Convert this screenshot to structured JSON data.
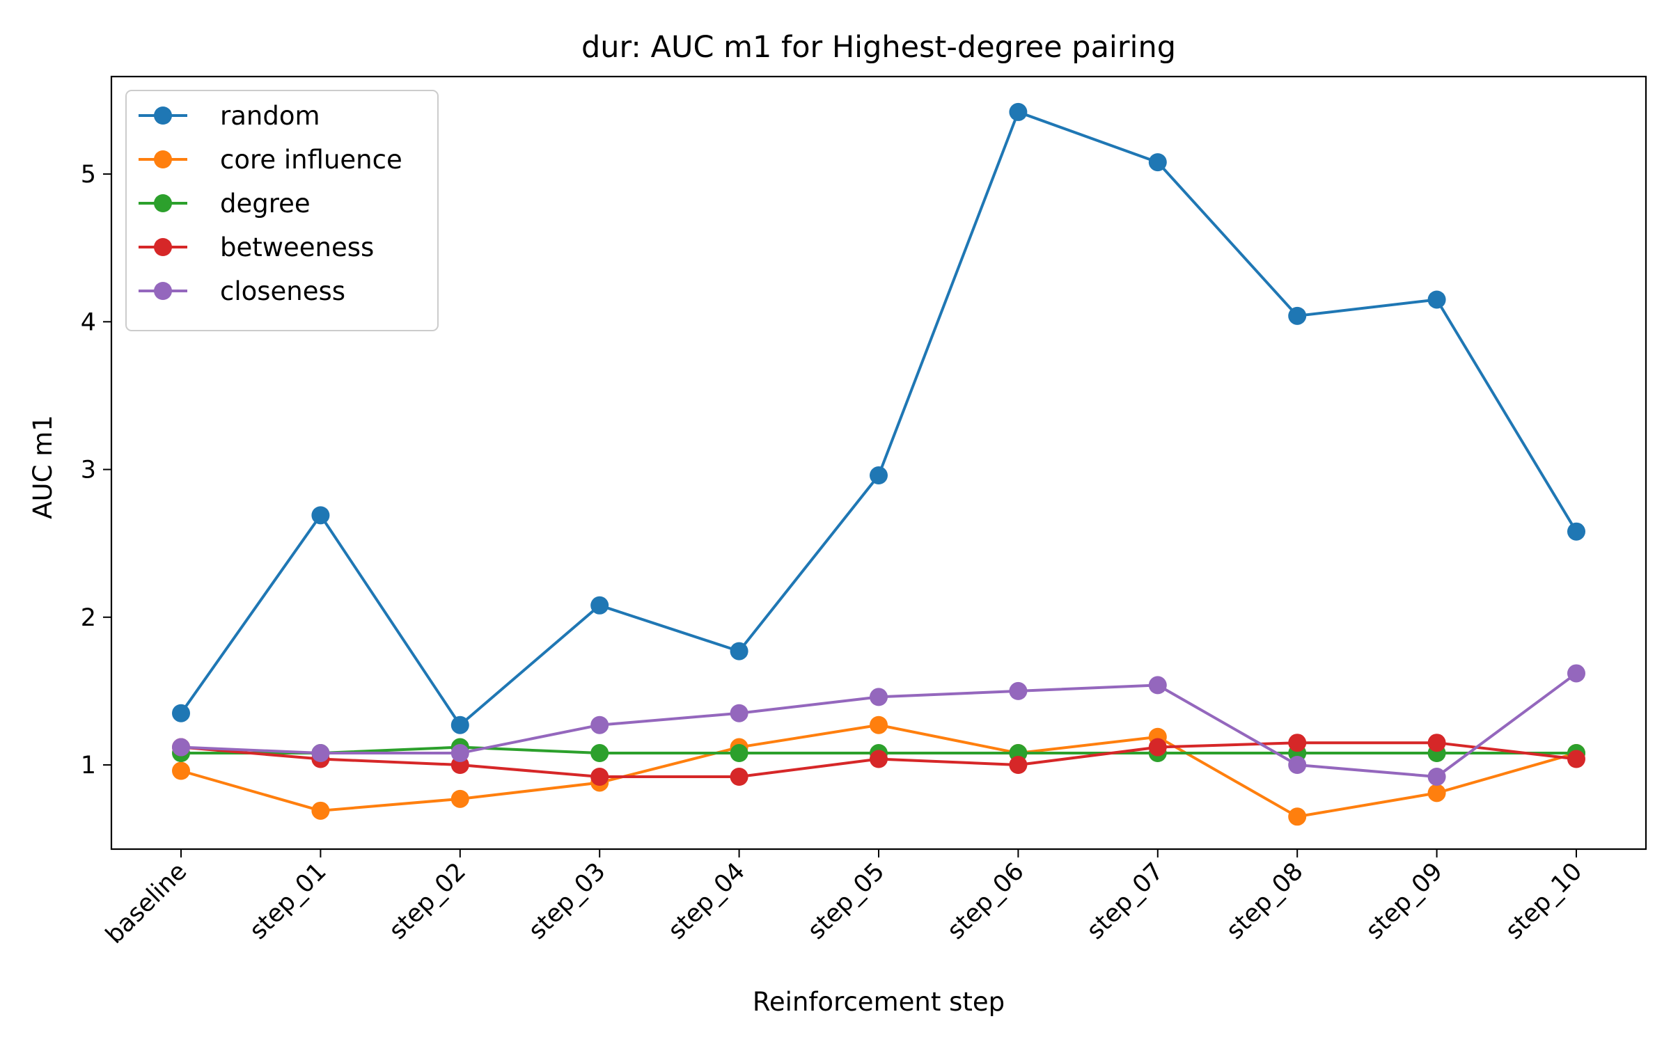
{
  "chart_data": {
    "type": "line",
    "title": "dur: AUC m1 for Highest-degree pairing",
    "xlabel": "Reinforcement step",
    "ylabel": "AUC m1",
    "categories": [
      "baseline",
      "step_01",
      "step_02",
      "step_03",
      "step_04",
      "step_05",
      "step_06",
      "step_07",
      "step_08",
      "step_09",
      "step_10"
    ],
    "yticks": [
      1,
      2,
      3,
      4,
      5
    ],
    "ylim": [
      0.43,
      5.66
    ],
    "grid": false,
    "legend_position": "top-left",
    "series": [
      {
        "name": "random",
        "color": "#1f77b4",
        "values": [
          1.35,
          2.69,
          1.27,
          2.08,
          1.77,
          2.96,
          5.42,
          5.08,
          4.04,
          4.15,
          2.58
        ]
      },
      {
        "name": "core influence",
        "color": "#ff7f0e",
        "values": [
          0.96,
          0.69,
          0.77,
          0.88,
          1.12,
          1.27,
          1.08,
          1.19,
          0.65,
          0.81,
          1.08
        ]
      },
      {
        "name": "degree",
        "color": "#2ca02c",
        "values": [
          1.08,
          1.08,
          1.12,
          1.08,
          1.08,
          1.08,
          1.08,
          1.08,
          1.08,
          1.08,
          1.08
        ]
      },
      {
        "name": "betweeness",
        "color": "#d62728",
        "values": [
          1.12,
          1.04,
          1.0,
          0.92,
          0.92,
          1.04,
          1.0,
          1.12,
          1.15,
          1.15,
          1.04
        ]
      },
      {
        "name": "closeness",
        "color": "#9467bd",
        "values": [
          1.12,
          1.08,
          1.08,
          1.27,
          1.35,
          1.46,
          1.5,
          1.54,
          1.0,
          0.92,
          1.62
        ]
      }
    ]
  }
}
